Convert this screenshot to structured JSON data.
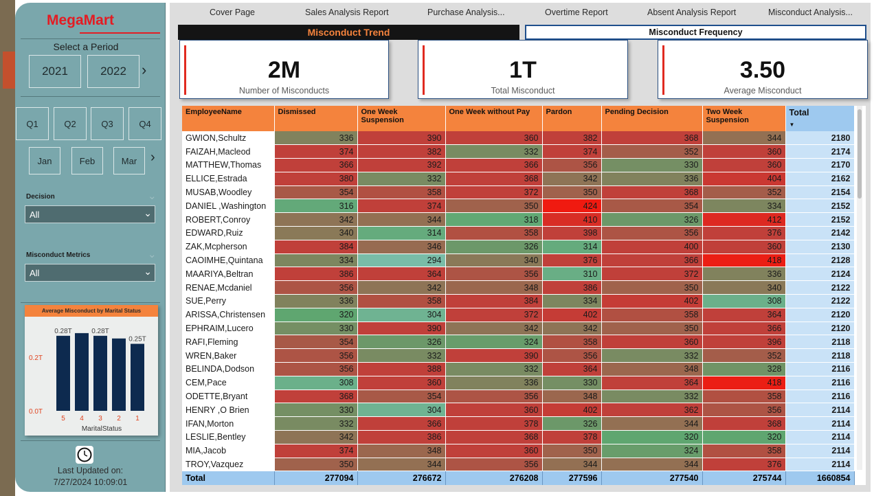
{
  "sidebar": {
    "logo": "MegaMart",
    "period_label": "Select a Period",
    "years": [
      "2021",
      "2022"
    ],
    "quarters": [
      "Q1",
      "Q2",
      "Q3",
      "Q4"
    ],
    "months": [
      "Jan",
      "Feb",
      "Mar"
    ],
    "filters": [
      {
        "label": "Decision",
        "value": "All"
      },
      {
        "label": "Misconduct Metrics",
        "value": "All"
      }
    ],
    "last_updated_label": "Last Updated on:",
    "last_updated_value": "7/27/2024 10:09:01"
  },
  "mini_chart": {
    "title": "Average Misconduct by Marital Status",
    "xlabel": "MaritalStatus",
    "y_ticks": [
      "0.2T",
      "0.0T"
    ]
  },
  "chart_data": {
    "type": "bar",
    "title": "Average Misconduct by Marital Status",
    "xlabel": "MaritalStatus",
    "ylabel": "",
    "categories": [
      "5",
      "4",
      "3",
      "2",
      "1"
    ],
    "values": [
      0.28,
      0.29,
      0.28,
      0.27,
      0.25
    ],
    "data_labels": [
      "0.28T",
      "",
      "0.28T",
      "",
      "0.25T"
    ],
    "ylim": [
      0,
      0.3
    ],
    "colors": {
      "bar": "#0d2a4f"
    }
  },
  "nav": {
    "tabs": [
      "Cover Page",
      "Sales Analysis Report",
      "Purchase Analysis...",
      "Overtime Report",
      "Absent Analysis Report",
      "Misconduct Analysis..."
    ]
  },
  "headers": {
    "trend": "Misconduct Trend",
    "frequency": "Misconduct Frequency"
  },
  "kpis": [
    {
      "value": "2M",
      "label": "Number of Misconducts"
    },
    {
      "value": "1T",
      "label": "Total Misconduct"
    },
    {
      "value": "3.50",
      "label": "Average Misconduct"
    }
  ],
  "table": {
    "columns": [
      "EmployeeName",
      "Dismissed",
      "One Week Suspension",
      "One Week without Pay",
      "Pardon",
      "Pending Decision",
      "Two Week Suspension",
      "Total"
    ],
    "rows": [
      [
        "GWION,Schultz",
        336,
        390,
        360,
        382,
        368,
        344,
        2180
      ],
      [
        "FAIZAH,Macleod",
        374,
        382,
        332,
        374,
        352,
        360,
        2174
      ],
      [
        "MATTHEW,Thomas",
        366,
        392,
        366,
        356,
        330,
        360,
        2170
      ],
      [
        "ELLICE,Estrada",
        380,
        332,
        368,
        342,
        336,
        404,
        2162
      ],
      [
        "MUSAB,Woodley",
        354,
        358,
        372,
        350,
        368,
        352,
        2154
      ],
      [
        "DANIEL ,Washington",
        316,
        374,
        350,
        424,
        354,
        334,
        2152
      ],
      [
        "ROBERT,Conroy",
        342,
        344,
        318,
        410,
        326,
        412,
        2152
      ],
      [
        "EDWARD,Ruiz",
        340,
        314,
        358,
        398,
        356,
        376,
        2142
      ],
      [
        "ZAK,Mcpherson",
        384,
        346,
        326,
        314,
        400,
        360,
        2130
      ],
      [
        "CAOIMHE,Quintana",
        334,
        294,
        340,
        376,
        366,
        418,
        2128
      ],
      [
        "MAARIYA,Beltran",
        386,
        364,
        356,
        310,
        372,
        336,
        2124
      ],
      [
        "RENAE,Mcdaniel",
        356,
        342,
        348,
        386,
        350,
        340,
        2122
      ],
      [
        "SUE,Perry",
        336,
        358,
        384,
        334,
        402,
        308,
        2122
      ],
      [
        "ARISSA,Christensen",
        320,
        304,
        372,
        402,
        358,
        364,
        2120
      ],
      [
        "EPHRAIM,Lucero",
        330,
        390,
        342,
        342,
        350,
        366,
        2120
      ],
      [
        "RAFI,Fleming",
        354,
        326,
        324,
        358,
        360,
        396,
        2118
      ],
      [
        "WREN,Baker",
        356,
        332,
        390,
        356,
        332,
        352,
        2118
      ],
      [
        "BELINDA,Dodson",
        356,
        388,
        332,
        364,
        348,
        328,
        2116
      ],
      [
        "CEM,Pace",
        308,
        360,
        336,
        330,
        364,
        418,
        2116
      ],
      [
        "ODETTE,Bryant",
        368,
        354,
        356,
        348,
        332,
        358,
        2116
      ],
      [
        "HENRY ,O Brien",
        330,
        304,
        360,
        402,
        362,
        356,
        2114
      ],
      [
        "IFAN,Morton",
        332,
        366,
        378,
        326,
        344,
        368,
        2114
      ],
      [
        "LESLIE,Bentley",
        342,
        386,
        368,
        378,
        320,
        320,
        2114
      ],
      [
        "MIA,Jacob",
        374,
        348,
        360,
        350,
        324,
        358,
        2114
      ],
      [
        "TROY,Vazquez",
        350,
        344,
        356,
        344,
        344,
        376,
        2114
      ]
    ],
    "totals": [
      "Total",
      277094,
      276672,
      276208,
      277596,
      277540,
      275744,
      1660854
    ],
    "colors": {
      "low": "#7dbfb0",
      "mid": "#5fa670",
      "high": "#c0403a",
      "peak": "#f01a10",
      "header": "#f4833d",
      "total": "#9ec9ef"
    }
  }
}
